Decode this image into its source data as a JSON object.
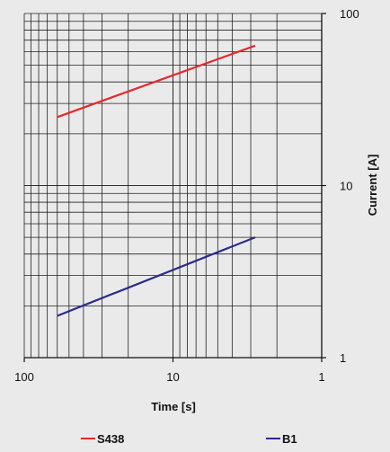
{
  "chart_data": {
    "type": "line",
    "xlabel": "Time [s]",
    "ylabel": "Current [A]",
    "x_scale": "log",
    "y_scale": "log",
    "x_reversed": true,
    "xlim": [
      100,
      1
    ],
    "ylim": [
      1,
      100
    ],
    "x_ticks": [
      "100",
      "10",
      "1"
    ],
    "y_ticks": [
      "100",
      "10",
      "1"
    ],
    "grid": true,
    "legend_position": "bottom",
    "series": [
      {
        "name": "S438",
        "color": "#e8262a",
        "x": [
          60,
          2.8
        ],
        "y": [
          25,
          65
        ]
      },
      {
        "name": "B1",
        "color": "#2a2a8c",
        "x": [
          60,
          2.8
        ],
        "y": [
          1.75,
          5
        ]
      }
    ]
  }
}
